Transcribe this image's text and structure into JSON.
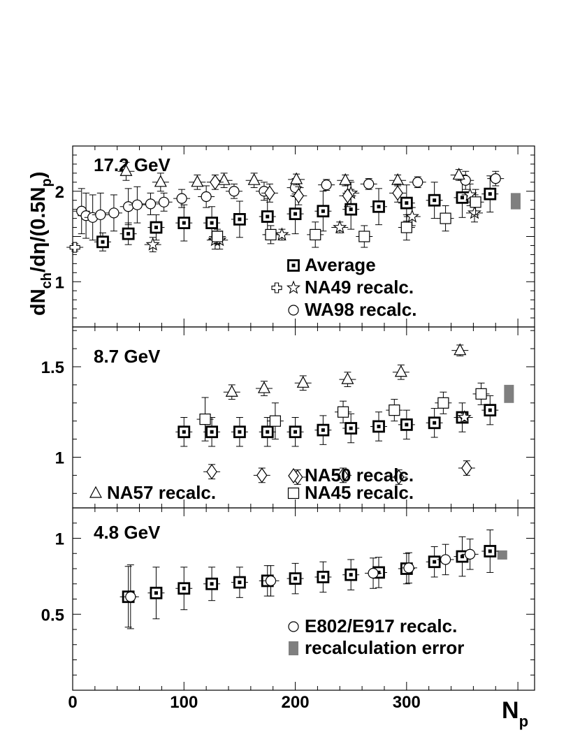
{
  "chart_data": {
    "type": "scatter",
    "xlabel": "N",
    "xlabel_sub": "p",
    "xlim": [
      0,
      415
    ],
    "xticks": [
      "0",
      "100",
      "200",
      "300"
    ],
    "ylabel_parts": [
      "dN",
      "ch",
      "/dη/(0.5N",
      "p",
      ")"
    ],
    "panels": [
      {
        "id": "p172",
        "label": "17.2 GeV",
        "ylim": [
          0.5,
          2.5
        ],
        "yticks": [
          "1",
          "2"
        ],
        "series": [
          {
            "name": "Average",
            "marker": "square-dot",
            "points": [
              [
                27,
                1.44,
                0.1
              ],
              [
                50,
                1.53,
                0.12
              ],
              [
                75,
                1.6,
                0.14
              ],
              [
                100,
                1.65,
                0.2
              ],
              [
                125,
                1.65,
                0.18
              ],
              [
                150,
                1.69,
                0.2
              ],
              [
                175,
                1.72,
                0.2
              ],
              [
                200,
                1.75,
                0.22
              ],
              [
                225,
                1.78,
                0.22
              ],
              [
                250,
                1.8,
                0.22
              ],
              [
                275,
                1.83,
                0.2
              ],
              [
                300,
                1.87,
                0.2
              ],
              [
                325,
                1.9,
                0.2
              ],
              [
                350,
                1.93,
                0.22
              ],
              [
                375,
                1.97,
                0.2
              ]
            ]
          },
          {
            "name": "NA49 recalc.",
            "marker": "star",
            "points": [
              [
                72,
                1.41,
                0.08
              ],
              [
                128,
                1.46,
                0.1
              ],
              [
                132,
                1.46,
                0.1
              ],
              [
                188,
                1.52,
                0.06
              ],
              [
                240,
                1.6,
                0.06
              ],
              [
                250,
                1.98,
                0.12
              ],
              [
                305,
                1.72,
                0.1
              ],
              [
                357,
                1.96,
                0.12
              ],
              [
                361,
                1.76,
                0.1
              ]
            ]
          },
          {
            "name": "",
            "marker": "cross",
            "points": [
              [
                2,
                1.38,
                0.04
              ]
            ]
          },
          {
            "name": "WA98 recalc.",
            "marker": "circle",
            "points": [
              [
                8,
                1.78,
                0.25
              ],
              [
                12,
                1.73,
                0.25
              ],
              [
                18,
                1.71,
                0.25
              ],
              [
                25,
                1.74,
                0.24
              ],
              [
                37,
                1.76,
                0.2
              ],
              [
                50,
                1.83,
                0.2
              ],
              [
                58,
                1.85,
                0.2
              ],
              [
                70,
                1.86,
                0.12
              ],
              [
                82,
                1.88,
                0.1
              ],
              [
                98,
                1.92,
                0.1
              ],
              [
                120,
                1.94,
                0.12
              ],
              [
                145,
                2.0,
                0.08
              ],
              [
                172,
                2.0,
                0.1
              ],
              [
                200,
                2.04,
                0.1
              ],
              [
                228,
                2.07,
                0.06
              ],
              [
                266,
                2.08,
                0.06
              ],
              [
                310,
                2.1,
                0.06
              ],
              [
                353,
                2.12,
                0.1
              ],
              [
                380,
                2.14,
                0.08
              ]
            ]
          },
          {
            "name": "",
            "marker": "open-square",
            "points": [
              [
                130,
                1.5,
                0.08
              ],
              [
                178,
                1.52,
                0.1
              ],
              [
                218,
                1.52,
                0.14
              ],
              [
                262,
                1.5,
                0.12
              ],
              [
                300,
                1.6,
                0.14
              ],
              [
                335,
                1.7,
                0.14
              ],
              [
                362,
                1.88,
                0.14
              ]
            ]
          },
          {
            "name": "",
            "marker": "triangle",
            "points": [
              [
                48,
                2.22,
                0.1
              ],
              [
                79,
                2.1,
                0.1
              ],
              [
                112,
                2.1,
                0.08
              ],
              [
                136,
                2.12,
                0.08
              ],
              [
                163,
                2.12,
                0.08
              ],
              [
                201,
                2.13,
                0.06
              ],
              [
                245,
                2.12,
                0.06
              ],
              [
                292,
                2.12,
                0.06
              ],
              [
                347,
                2.18,
                0.06
              ]
            ]
          },
          {
            "name": "",
            "marker": "diamond",
            "points": [
              [
                128,
                2.1,
                0.08
              ],
              [
                177,
                1.98,
                0.1
              ],
              [
                203,
                1.95,
                0.1
              ],
              [
                247,
                1.95,
                0.12
              ],
              [
                292,
                1.98,
                0.1
              ]
            ]
          }
        ],
        "sys_band": {
          "x": 398,
          "ylo": 1.8,
          "yhi": 1.98
        },
        "legend": [
          {
            "markers": [
              "square-dot"
            ],
            "label": "Average"
          },
          {
            "markers": [
              "cross",
              "star"
            ],
            "label": "NA49 recalc."
          },
          {
            "markers": [
              "circle"
            ],
            "label": "WA98 recalc."
          }
        ]
      },
      {
        "id": "p87",
        "label": "8.7 GeV",
        "ylim": [
          0.72,
          1.72
        ],
        "yticks": [
          "1",
          "1.5"
        ],
        "series": [
          {
            "name": "Average",
            "marker": "square-dot",
            "points": [
              [
                100,
                1.14,
                0.08
              ],
              [
                125,
                1.14,
                0.08
              ],
              [
                150,
                1.14,
                0.08
              ],
              [
                175,
                1.14,
                0.08
              ],
              [
                200,
                1.14,
                0.08
              ],
              [
                225,
                1.15,
                0.08
              ],
              [
                250,
                1.16,
                0.08
              ],
              [
                275,
                1.17,
                0.08
              ],
              [
                300,
                1.18,
                0.08
              ],
              [
                325,
                1.19,
                0.08
              ],
              [
                350,
                1.22,
                0.08
              ],
              [
                375,
                1.26,
                0.08
              ]
            ]
          },
          {
            "name": "NA57 recalc.",
            "marker": "triangle",
            "points": [
              [
                143,
                1.36,
                0.04
              ],
              [
                172,
                1.38,
                0.04
              ],
              [
                207,
                1.41,
                0.04
              ],
              [
                247,
                1.43,
                0.04
              ],
              [
                295,
                1.47,
                0.04
              ],
              [
                348,
                1.59,
                0.03
              ]
            ]
          },
          {
            "name": "NA50 recalc.",
            "marker": "diamond",
            "points": [
              [
                125,
                0.92,
                0.04
              ],
              [
                170,
                0.9,
                0.04
              ],
              [
                202,
                0.89,
                0.04
              ],
              [
                243,
                0.9,
                0.04
              ],
              [
                293,
                0.89,
                0.04
              ],
              [
                354,
                0.94,
                0.04
              ]
            ]
          },
          {
            "name": "NA45 recalc.",
            "marker": "open-square",
            "points": [
              [
                119,
                1.21,
                0.12
              ],
              [
                182,
                1.2,
                0.1
              ],
              [
                243,
                1.25,
                0.06
              ],
              [
                289,
                1.26,
                0.06
              ],
              [
                333,
                1.3,
                0.06
              ],
              [
                367,
                1.35,
                0.06
              ]
            ]
          },
          {
            "name": "NA49 recalc.",
            "marker": "star",
            "points": [
              [
                352,
                1.22,
                0.02
              ]
            ]
          }
        ],
        "sys_band": {
          "x": 392,
          "ylo": 1.3,
          "yhi": 1.4
        },
        "legend": [
          {
            "markers": [
              "diamond"
            ],
            "label": "NA50 recalc."
          },
          {
            "markers": [
              "triangle"
            ],
            "label": "NA57 recalc."
          },
          {
            "markers": [
              "open-square"
            ],
            "label": "NA45 recalc."
          }
        ]
      },
      {
        "id": "p48",
        "label": "4.8 GeV",
        "ylim": [
          0.0,
          1.2
        ],
        "yticks": [
          "0.5",
          "1"
        ],
        "series": [
          {
            "name": "Average",
            "marker": "square-dot",
            "points": [
              [
                50,
                0.615,
                0.2
              ],
              [
                75,
                0.64,
                0.17
              ],
              [
                100,
                0.67,
                0.14
              ],
              [
                125,
                0.7,
                0.11
              ],
              [
                150,
                0.71,
                0.1
              ],
              [
                175,
                0.72,
                0.1
              ],
              [
                200,
                0.735,
                0.1
              ],
              [
                225,
                0.745,
                0.1
              ],
              [
                250,
                0.76,
                0.1
              ],
              [
                275,
                0.775,
                0.1
              ],
              [
                300,
                0.8,
                0.1
              ],
              [
                325,
                0.845,
                0.1
              ],
              [
                350,
                0.88,
                0.13
              ],
              [
                375,
                0.915,
                0.14
              ]
            ]
          },
          {
            "name": "E802/E917 recalc.",
            "marker": "circle",
            "points": [
              [
                52,
                0.615,
                0.21
              ],
              [
                178,
                0.72,
                0.1
              ],
              [
                270,
                0.77,
                0.1
              ],
              [
                302,
                0.805,
                0.1
              ],
              [
                335,
                0.86,
                0.1
              ],
              [
                357,
                0.895,
                0.1
              ]
            ]
          }
        ],
        "sys_band": {
          "x": 386,
          "ylo": 0.86,
          "yhi": 0.92
        },
        "legend": [
          {
            "markers": [
              "circle"
            ],
            "label": "E802/E917 recalc."
          },
          {
            "markers": [
              "band"
            ],
            "label": "recalculation error"
          }
        ]
      }
    ]
  }
}
